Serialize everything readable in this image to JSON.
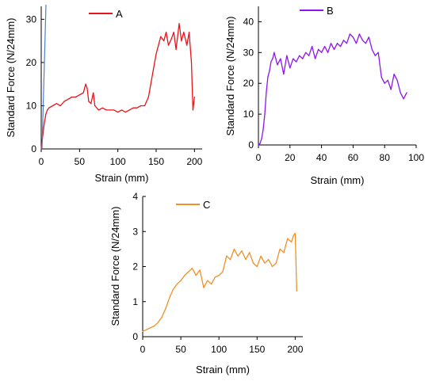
{
  "chart_data": [
    {
      "type": "line",
      "panel": "A",
      "xlabel": "Strain (mm)",
      "ylabel": "Standard Force (N/24mm)",
      "xlim": [
        0,
        210
      ],
      "ylim": [
        0,
        33
      ],
      "xticks": [
        0,
        50,
        100,
        150,
        200
      ],
      "yticks": [
        0,
        10,
        20,
        30
      ],
      "legend_position": "top-center",
      "series": [
        {
          "name": "A",
          "color": "#e8141b",
          "x": [
            0,
            2,
            4,
            6,
            8,
            10,
            15,
            20,
            25,
            30,
            35,
            40,
            45,
            50,
            55,
            58,
            60,
            62,
            65,
            68,
            70,
            75,
            80,
            85,
            90,
            95,
            100,
            105,
            110,
            115,
            120,
            125,
            130,
            135,
            140,
            143,
            146,
            150,
            153,
            156,
            160,
            163,
            166,
            170,
            173,
            176,
            180,
            183,
            186,
            190,
            193,
            196,
            198,
            200
          ],
          "y": [
            0,
            3,
            6,
            8,
            9,
            9.5,
            10,
            10.5,
            10,
            11,
            11.5,
            12,
            12,
            12.5,
            13,
            15,
            14,
            11,
            10.5,
            13,
            10,
            9,
            9.5,
            9,
            9,
            9,
            8.5,
            9,
            8.5,
            9,
            9.5,
            9.5,
            10,
            10,
            12,
            15,
            18,
            22,
            24,
            26,
            25,
            27,
            24,
            25.5,
            27,
            23,
            29,
            25,
            27,
            24,
            27,
            20,
            9,
            12
          ]
        }
      ]
    },
    {
      "type": "line",
      "panel": "B",
      "xlabel": "Strain (mm)",
      "ylabel": "Standard Force (N/24mm)",
      "xlim": [
        0,
        100
      ],
      "ylim": [
        0,
        45
      ],
      "xticks": [
        0,
        20,
        40,
        60,
        80,
        100
      ],
      "yticks": [
        0,
        10,
        20,
        30,
        40
      ],
      "legend_position": "top-center",
      "series": [
        {
          "name": "B",
          "color": "#8b16ee",
          "x": [
            0,
            1,
            2,
            3,
            4,
            5,
            6,
            7,
            8,
            9,
            10,
            12,
            14,
            16,
            18,
            20,
            22,
            24,
            26,
            28,
            30,
            32,
            34,
            36,
            38,
            40,
            42,
            44,
            46,
            48,
            50,
            52,
            54,
            56,
            58,
            60,
            62,
            64,
            66,
            68,
            70,
            72,
            74,
            76,
            78,
            80,
            82,
            84,
            86,
            88,
            90,
            92,
            94
          ],
          "y": [
            0,
            0.5,
            2,
            5,
            10,
            17,
            22,
            24,
            27,
            28,
            30,
            26,
            28,
            23,
            29,
            25,
            28,
            27,
            29,
            28,
            30,
            29,
            32,
            28,
            31,
            30,
            32,
            30,
            33,
            31,
            33,
            32,
            34,
            33,
            36,
            35,
            33,
            36,
            34,
            33,
            35,
            31,
            29,
            30,
            22,
            20,
            21,
            18,
            23,
            21,
            17,
            15,
            17
          ]
        }
      ]
    },
    {
      "type": "line",
      "panel": "C",
      "xlabel": "Strain (mm)",
      "ylabel": "Standard Force (N/24mm)",
      "xlim": [
        0,
        210
      ],
      "ylim": [
        0,
        4
      ],
      "xticks": [
        0,
        50,
        100,
        150,
        200
      ],
      "yticks": [
        0,
        1,
        2,
        3,
        4
      ],
      "legend_position": "top-center",
      "series": [
        {
          "name": "C",
          "color": "#f09028",
          "x": [
            0,
            5,
            10,
            15,
            20,
            25,
            30,
            35,
            40,
            45,
            50,
            55,
            60,
            65,
            70,
            75,
            80,
            85,
            90,
            95,
            100,
            105,
            110,
            115,
            120,
            125,
            130,
            135,
            140,
            145,
            150,
            155,
            160,
            165,
            170,
            175,
            180,
            185,
            190,
            195,
            198,
            200,
            202
          ],
          "y": [
            0.15,
            0.2,
            0.25,
            0.3,
            0.4,
            0.55,
            0.8,
            1.1,
            1.35,
            1.5,
            1.6,
            1.75,
            1.85,
            1.95,
            1.75,
            1.9,
            1.4,
            1.6,
            1.5,
            1.7,
            1.75,
            1.85,
            2.3,
            2.2,
            2.5,
            2.3,
            2.45,
            2.2,
            2.4,
            2.1,
            2.0,
            2.3,
            2.1,
            2.2,
            2.0,
            2.1,
            2.5,
            2.4,
            2.8,
            2.7,
            2.9,
            2.95,
            1.3
          ]
        }
      ]
    }
  ]
}
